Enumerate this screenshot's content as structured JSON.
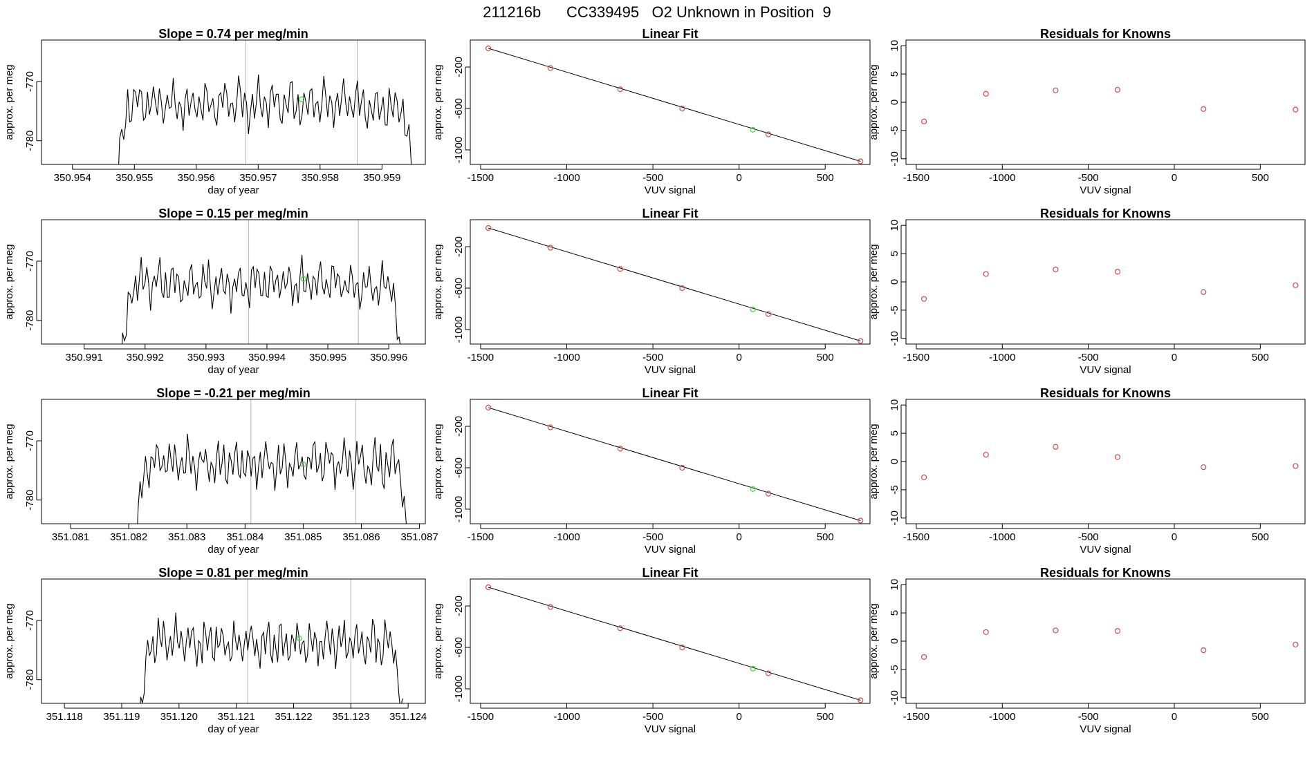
{
  "figure_title": "211216b      CC339495   O2 Unknown in Position  9",
  "colors": {
    "trace": "#000000",
    "known_point": "#CD4A4A",
    "unknown_point": "#3ED43E",
    "vline": "#BEBEBE"
  },
  "chart_data": [
    {
      "type": "line",
      "row": 1,
      "panel": "time-series",
      "title": "Slope =  0.74  per meg/min",
      "xlabel": "day of year",
      "ylabel": "approx. per meg",
      "xlim": [
        350.9535,
        350.9597
      ],
      "ylim": [
        -784,
        -763
      ],
      "xticks": [
        350.954,
        350.955,
        350.956,
        350.957,
        350.958,
        350.959
      ],
      "xtick_labels": [
        "350.954",
        "350.955",
        "350.956",
        "350.957",
        "350.958",
        "350.959"
      ],
      "yticks": [
        -770,
        -780
      ],
      "ytick_labels": [
        "-770",
        "-780"
      ],
      "trace_start": 350.9547,
      "trace_end": 350.9595,
      "trace_mean": -773.8,
      "vlines": [
        350.9568,
        350.9586
      ],
      "highlight_point": {
        "x": 350.9577,
        "y": -773
      }
    },
    {
      "type": "scatter",
      "row": 1,
      "panel": "linear-fit",
      "title": "Linear Fit",
      "xlabel": "VUV signal",
      "ylabel": "approx. per meg",
      "xlim": [
        -1560,
        760
      ],
      "ylim": [
        -1140,
        60
      ],
      "xticks": [
        -1500,
        -1000,
        -500,
        0,
        500
      ],
      "xtick_labels": [
        "-1500",
        "-1000",
        "-500",
        "0",
        "500"
      ],
      "yticks": [
        -200,
        -600,
        -1000
      ],
      "ytick_labels": [
        "-200",
        "-600",
        "-1000"
      ],
      "knowns": {
        "x": [
          -1455,
          -1095,
          -690,
          -330,
          170,
          705
        ],
        "y": [
          -20,
          -210,
          -415,
          -600,
          -850,
          -1110
        ]
      },
      "unknown": {
        "x": 80,
        "y": -805
      },
      "fit_line": {
        "x": [
          -1455,
          705
        ],
        "y": [
          -20,
          -1110
        ]
      }
    },
    {
      "type": "scatter",
      "row": 1,
      "panel": "residuals",
      "title": "Residuals for Knowns",
      "xlabel": "VUV signal",
      "ylabel": "approx. per meg",
      "xlim": [
        -1560,
        760
      ],
      "ylim": [
        -11,
        11
      ],
      "xticks": [
        -1500,
        -1000,
        -500,
        0,
        500
      ],
      "xtick_labels": [
        "-1500",
        "-1000",
        "-500",
        "0",
        "500"
      ],
      "yticks": [
        10,
        5,
        0,
        -5,
        -10
      ],
      "ytick_labels": [
        "10",
        "5",
        "0",
        "-5",
        "-10"
      ],
      "x": [
        -1455,
        -1095,
        -690,
        -330,
        170,
        705
      ],
      "y": [
        -3.4,
        1.5,
        2.1,
        2.2,
        -1.2,
        -1.3
      ]
    },
    {
      "type": "line",
      "row": 2,
      "panel": "time-series",
      "title": "Slope =  0.15  per meg/min",
      "xlabel": "day of year",
      "ylabel": "approx. per meg",
      "xlim": [
        350.9903,
        350.9966
      ],
      "ylim": [
        -784,
        -763
      ],
      "xticks": [
        350.991,
        350.992,
        350.993,
        350.994,
        350.995,
        350.996
      ],
      "xtick_labels": [
        "350.991",
        "350.992",
        "350.993",
        "350.994",
        "350.995",
        "350.996"
      ],
      "yticks": [
        -770,
        -780
      ],
      "ytick_labels": [
        "-770",
        "-780"
      ],
      "trace_start": 350.9916,
      "trace_end": 350.9962,
      "trace_mean": -773.8,
      "vlines": [
        350.9937,
        350.9955
      ],
      "highlight_point": {
        "x": 350.9946,
        "y": -773
      }
    },
    {
      "type": "scatter",
      "row": 2,
      "panel": "linear-fit",
      "title": "Linear Fit",
      "xlabel": "VUV signal",
      "ylabel": "approx. per meg",
      "xlim": [
        -1560,
        760
      ],
      "ylim": [
        -1140,
        60
      ],
      "xticks": [
        -1500,
        -1000,
        -500,
        0,
        500
      ],
      "xtick_labels": [
        "-1500",
        "-1000",
        "-500",
        "0",
        "500"
      ],
      "yticks": [
        -200,
        -600,
        -1000
      ],
      "ytick_labels": [
        "-200",
        "-600",
        "-1000"
      ],
      "knowns": {
        "x": [
          -1455,
          -1095,
          -690,
          -330,
          170,
          705
        ],
        "y": [
          -20,
          -210,
          -415,
          -600,
          -850,
          -1110
        ]
      },
      "unknown": {
        "x": 80,
        "y": -805
      },
      "fit_line": {
        "x": [
          -1455,
          705
        ],
        "y": [
          -20,
          -1110
        ]
      }
    },
    {
      "type": "scatter",
      "row": 2,
      "panel": "residuals",
      "title": "Residuals for Knowns",
      "xlabel": "VUV signal",
      "ylabel": "approx. per meg",
      "xlim": [
        -1560,
        760
      ],
      "ylim": [
        -11,
        11
      ],
      "xticks": [
        -1500,
        -1000,
        -500,
        0,
        500
      ],
      "xtick_labels": [
        "-1500",
        "-1000",
        "-500",
        "0",
        "500"
      ],
      "yticks": [
        10,
        5,
        0,
        -5,
        -10
      ],
      "ytick_labels": [
        "10",
        "5",
        "0",
        "-5",
        "-10"
      ],
      "x": [
        -1455,
        -1095,
        -690,
        -330,
        170,
        705
      ],
      "y": [
        -3.0,
        1.4,
        2.2,
        1.8,
        -1.8,
        -0.6
      ]
    },
    {
      "type": "line",
      "row": 3,
      "panel": "time-series",
      "title": "Slope =  -0.21  per meg/min",
      "xlabel": "day of year",
      "ylabel": "approx. per meg",
      "xlim": [
        351.0805,
        351.0871
      ],
      "ylim": [
        -784,
        -763
      ],
      "xticks": [
        351.081,
        351.082,
        351.083,
        351.084,
        351.085,
        351.086,
        351.087
      ],
      "xtick_labels": [
        "351.081",
        "351.082",
        "351.083",
        "351.084",
        "351.085",
        "351.086",
        "351.087"
      ],
      "yticks": [
        -770,
        -780
      ],
      "ytick_labels": [
        "-770",
        "-780"
      ],
      "trace_start": 351.0821,
      "trace_end": 351.0868,
      "trace_mean": -773.8,
      "vlines": [
        351.0841,
        351.0859
      ],
      "highlight_point": {
        "x": 351.085,
        "y": -774
      }
    },
    {
      "type": "scatter",
      "row": 3,
      "panel": "linear-fit",
      "title": "Linear Fit",
      "xlabel": "VUV signal",
      "ylabel": "approx. per meg",
      "xlim": [
        -1560,
        760
      ],
      "ylim": [
        -1140,
        60
      ],
      "xticks": [
        -1500,
        -1000,
        -500,
        0,
        500
      ],
      "xtick_labels": [
        "-1500",
        "-1000",
        "-500",
        "0",
        "500"
      ],
      "yticks": [
        -200,
        -600,
        -1000
      ],
      "ytick_labels": [
        "-200",
        "-600",
        "-1000"
      ],
      "knowns": {
        "x": [
          -1455,
          -1095,
          -690,
          -330,
          170,
          705
        ],
        "y": [
          -20,
          -210,
          -415,
          -600,
          -850,
          -1110
        ]
      },
      "unknown": {
        "x": 80,
        "y": -805
      },
      "fit_line": {
        "x": [
          -1455,
          705
        ],
        "y": [
          -20,
          -1110
        ]
      }
    },
    {
      "type": "scatter",
      "row": 3,
      "panel": "residuals",
      "title": "Residuals for Knowns",
      "xlabel": "VUV signal",
      "ylabel": "approx. per meg",
      "xlim": [
        -1560,
        760
      ],
      "ylim": [
        -11,
        11
      ],
      "xticks": [
        -1500,
        -1000,
        -500,
        0,
        500
      ],
      "xtick_labels": [
        "-1500",
        "-1000",
        "-500",
        "0",
        "500"
      ],
      "yticks": [
        10,
        5,
        0,
        -5,
        -10
      ],
      "ytick_labels": [
        "10",
        "5",
        "0",
        "-5",
        "-10"
      ],
      "x": [
        -1455,
        -1095,
        -690,
        -330,
        170,
        705
      ],
      "y": [
        -2.8,
        1.2,
        2.6,
        0.8,
        -1.0,
        -0.8
      ]
    },
    {
      "type": "line",
      "row": 4,
      "panel": "time-series",
      "title": "Slope =  0.81  per meg/min",
      "xlabel": "day of year",
      "ylabel": "approx. per meg",
      "xlim": [
        351.1176,
        351.1243
      ],
      "ylim": [
        -784,
        -763
      ],
      "xticks": [
        351.118,
        351.119,
        351.12,
        351.121,
        351.122,
        351.123,
        351.124
      ],
      "xtick_labels": [
        "351.118",
        "351.119",
        "351.120",
        "351.121",
        "351.122",
        "351.123",
        "351.124"
      ],
      "yticks": [
        -770,
        -780
      ],
      "ytick_labels": [
        "-770",
        "-780"
      ],
      "trace_start": 351.1193,
      "trace_end": 351.1239,
      "trace_mean": -773.8,
      "vlines": [
        351.1212,
        351.123
      ],
      "highlight_point": {
        "x": 351.1221,
        "y": -773
      }
    },
    {
      "type": "scatter",
      "row": 4,
      "panel": "linear-fit",
      "title": "Linear Fit",
      "xlabel": "VUV signal",
      "ylabel": "approx. per meg",
      "xlim": [
        -1560,
        760
      ],
      "ylim": [
        -1140,
        60
      ],
      "xticks": [
        -1500,
        -1000,
        -500,
        0,
        500
      ],
      "xtick_labels": [
        "-1500",
        "-1000",
        "-500",
        "0",
        "500"
      ],
      "yticks": [
        -200,
        -600,
        -1000
      ],
      "ytick_labels": [
        "-200",
        "-600",
        "-1000"
      ],
      "knowns": {
        "x": [
          -1455,
          -1095,
          -690,
          -330,
          170,
          705
        ],
        "y": [
          -20,
          -210,
          -415,
          -600,
          -850,
          -1110
        ]
      },
      "unknown": {
        "x": 80,
        "y": -805
      },
      "fit_line": {
        "x": [
          -1455,
          705
        ],
        "y": [
          -20,
          -1110
        ]
      }
    },
    {
      "type": "scatter",
      "row": 4,
      "panel": "residuals",
      "title": "Residuals for Knowns",
      "xlabel": "VUV signal",
      "ylabel": "approx. per meg",
      "xlim": [
        -1560,
        760
      ],
      "ylim": [
        -11,
        11
      ],
      "xticks": [
        -1500,
        -1000,
        -500,
        0,
        500
      ],
      "xtick_labels": [
        "-1500",
        "-1000",
        "-500",
        "0",
        "500"
      ],
      "yticks": [
        10,
        5,
        0,
        -5,
        -10
      ],
      "ytick_labels": [
        "10",
        "5",
        "0",
        "-5",
        "-10"
      ],
      "x": [
        -1455,
        -1095,
        -690,
        -330,
        170,
        705
      ],
      "y": [
        -2.8,
        1.6,
        1.9,
        1.8,
        -1.6,
        -0.6
      ]
    }
  ]
}
